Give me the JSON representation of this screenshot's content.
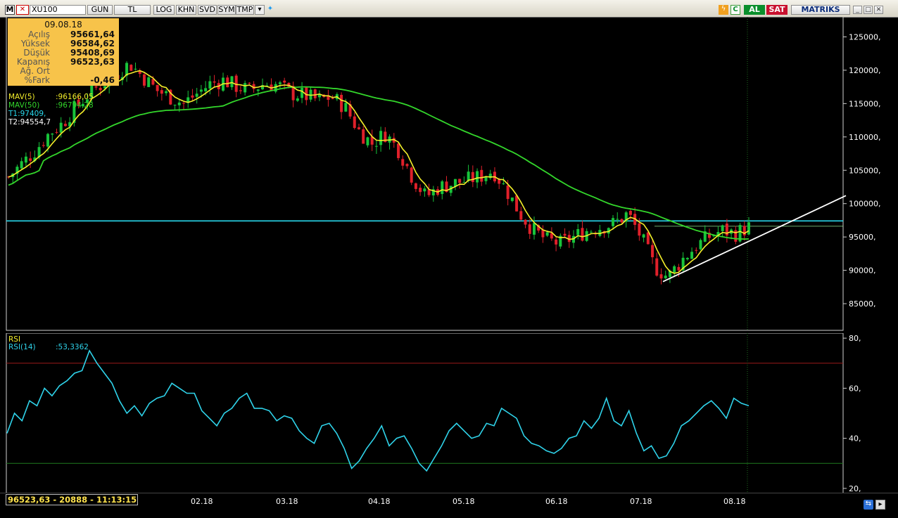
{
  "toolbar": {
    "app_letter": "M",
    "close_mark": "✕",
    "symbol": "XU100",
    "buttons": [
      "GUN",
      "TL",
      "LOG",
      "KHN",
      "SVD",
      "SYM",
      "TMP"
    ],
    "buy_label": "AL",
    "sell_label": "SAT",
    "brand": "MATRIKS"
  },
  "info_box": {
    "date": "09.08.18",
    "rows": [
      {
        "label": "Açılış",
        "value": "95661,64"
      },
      {
        "label": "Yüksek",
        "value": "96584,62"
      },
      {
        "label": "Düşük",
        "value": "95408,69"
      },
      {
        "label": "Kapanış",
        "value": "96523,63"
      },
      {
        "label": "Ağ. Ort",
        "value": ""
      },
      {
        "label": "%Fark",
        "value": "-0,46"
      }
    ]
  },
  "legend": {
    "mav5": "MAV(5)",
    "mav5_value": ":96166,05",
    "mav50": "MAV(50)",
    "mav50_value": ":96794,28",
    "t1": "T1:97409,",
    "t2": "T2:94554,7"
  },
  "rsi_legend": {
    "title": "RSI",
    "name": "RSI(14)",
    "value": ":53,3362"
  },
  "status": "96523,63 - 20888 - 11:13:15",
  "colors": {
    "up_candle": "#18c43a",
    "down_candle": "#e0202a",
    "mav5": "#f4ee2a",
    "mav50": "#33d62b",
    "hline": "#29d8ec",
    "trendline": "#ffffff",
    "rsi": "#2fd3ea"
  },
  "chart_data": [
    {
      "type": "candlestick",
      "title": "XU100",
      "x": [
        "02.18",
        "03.18",
        "04.18",
        "05.18",
        "06.18",
        "07.18",
        "08.18"
      ],
      "ylim": [
        81000,
        128000
      ],
      "y_ticks": [
        "85000,",
        "90000,",
        "95000,",
        "100000,",
        "105000,",
        "110000,",
        "115000,",
        "120000,",
        "125000,"
      ],
      "close_series_approx": [
        104000,
        106000,
        108000,
        110500,
        112000,
        114500,
        116500,
        118000,
        119500,
        121000,
        119000,
        117000,
        116000,
        115000,
        116500,
        118000,
        118500,
        117500,
        117000,
        118000,
        117800,
        116500,
        116200,
        115500,
        116000,
        114500,
        111000,
        109000,
        110500,
        108000,
        104000,
        101000,
        102500,
        103000,
        103500,
        104000,
        105000,
        102000,
        98500,
        96000,
        94500,
        94000,
        95000,
        96000,
        96500,
        97000,
        98500,
        95000,
        90500,
        89000,
        91500,
        93500,
        95000,
        96000,
        95500,
        96500
      ],
      "mav5_last": 96166.05,
      "mav50_last": 96794.28,
      "horizontal_line": 97409,
      "trendline_start": 88300,
      "trendline_end_label": 94554.7
    },
    {
      "type": "line",
      "title": "RSI",
      "series": [
        {
          "name": "RSI(14)",
          "values": [
            42,
            50,
            47,
            55,
            53,
            60,
            57,
            61,
            63,
            66,
            67,
            75,
            70,
            66,
            62,
            55,
            50,
            53,
            49,
            54,
            56,
            57,
            62,
            60,
            58,
            58,
            51,
            48,
            45,
            50,
            52,
            56,
            58,
            52,
            52,
            51,
            47,
            49,
            48,
            43,
            40,
            38,
            45,
            46,
            42,
            36,
            28,
            31,
            36,
            40,
            45,
            37,
            40,
            41,
            36,
            30,
            27,
            32,
            37,
            43,
            46,
            43,
            40,
            41,
            46,
            45,
            52,
            50,
            48,
            41,
            38,
            37,
            35,
            34,
            36,
            40,
            41,
            47,
            44,
            48,
            56,
            47,
            45,
            51,
            42,
            35,
            37,
            32,
            33,
            38,
            45,
            47,
            50,
            53,
            55,
            52,
            48,
            56,
            54,
            53
          ]
        }
      ],
      "ylim": [
        18,
        82
      ],
      "y_ticks": [
        "20,",
        "40,",
        "60,",
        "80,"
      ],
      "levels": [
        30,
        70
      ],
      "last_value": 53.3362
    }
  ]
}
